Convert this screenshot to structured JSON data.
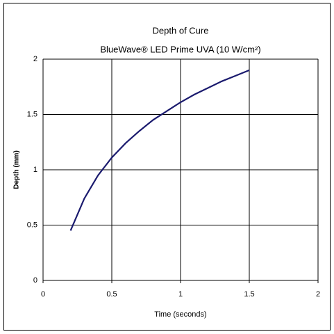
{
  "chart_data": {
    "type": "line",
    "title": "Depth of Cure",
    "subtitle": "BlueWave® LED Prime UVA (10 W/cm²)",
    "x_label": "Time (seconds)",
    "y_label": "Depth (mm)",
    "x": [
      0.2,
      0.3,
      0.4,
      0.5,
      0.6,
      0.7,
      0.8,
      0.9,
      1.0,
      1.1,
      1.2,
      1.3,
      1.4,
      1.5
    ],
    "series": [
      {
        "name": "Depth",
        "color": "#1a1a6e",
        "values": [
          0.45,
          0.74,
          0.95,
          1.11,
          1.24,
          1.35,
          1.45,
          1.53,
          1.61,
          1.68,
          1.74,
          1.8,
          1.85,
          1.9
        ]
      }
    ],
    "xlim": [
      0,
      2
    ],
    "xticks": [
      0,
      0.5,
      1,
      1.5,
      2
    ],
    "ylim": [
      0,
      2
    ],
    "yticks": [
      0,
      0.5,
      1,
      1.5,
      2
    ],
    "grid": true
  }
}
